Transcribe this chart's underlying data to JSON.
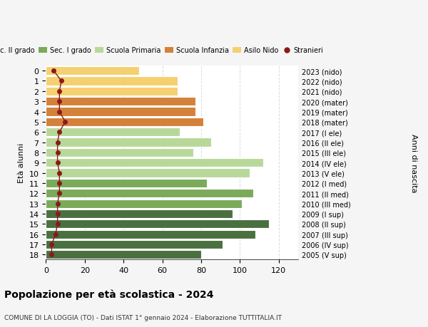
{
  "ages": [
    18,
    17,
    16,
    15,
    14,
    13,
    12,
    11,
    10,
    9,
    8,
    7,
    6,
    5,
    4,
    3,
    2,
    1,
    0
  ],
  "years": [
    "2005 (V sup)",
    "2006 (IV sup)",
    "2007 (III sup)",
    "2008 (II sup)",
    "2009 (I sup)",
    "2010 (III med)",
    "2011 (II med)",
    "2012 (I med)",
    "2013 (V ele)",
    "2014 (IV ele)",
    "2015 (III ele)",
    "2016 (II ele)",
    "2017 (I ele)",
    "2018 (mater)",
    "2019 (mater)",
    "2020 (mater)",
    "2021 (nido)",
    "2022 (nido)",
    "2023 (nido)"
  ],
  "values": [
    80,
    91,
    108,
    115,
    96,
    101,
    107,
    83,
    105,
    112,
    76,
    85,
    69,
    81,
    77,
    77,
    68,
    68,
    48
  ],
  "stranieri": [
    3,
    3,
    5,
    6,
    6,
    6,
    7,
    7,
    7,
    6,
    6,
    6,
    7,
    10,
    7,
    7,
    7,
    8,
    4
  ],
  "bar_colors": [
    "#4a7040",
    "#4a7040",
    "#4a7040",
    "#4a7040",
    "#4a7040",
    "#7aaa5a",
    "#7aaa5a",
    "#7aaa5a",
    "#b8d89a",
    "#b8d89a",
    "#b8d89a",
    "#b8d89a",
    "#b8d89a",
    "#d4813a",
    "#d4813a",
    "#d4813a",
    "#f5d070",
    "#f5d070",
    "#f5d070"
  ],
  "legend_labels": [
    "Sec. II grado",
    "Sec. I grado",
    "Scuola Primaria",
    "Scuola Infanzia",
    "Asilo Nido",
    "Stranieri"
  ],
  "legend_colors": [
    "#4a7040",
    "#7aaa5a",
    "#b8d89a",
    "#d4813a",
    "#f5d070",
    "#cc2222"
  ],
  "title": "Popolazione per età scolastica - 2024",
  "subtitle": "COMUNE DI LA LOGGIA (TO) - Dati ISTAT 1° gennaio 2024 - Elaborazione TUTTITALIA.IT",
  "ylabel": "Età alunni",
  "right_label": "Anni di nascita",
  "xlim": [
    0,
    130
  ],
  "background_color": "#f5f5f5",
  "plot_bg": "#ffffff",
  "stranieri_color": "#8b1a1a"
}
